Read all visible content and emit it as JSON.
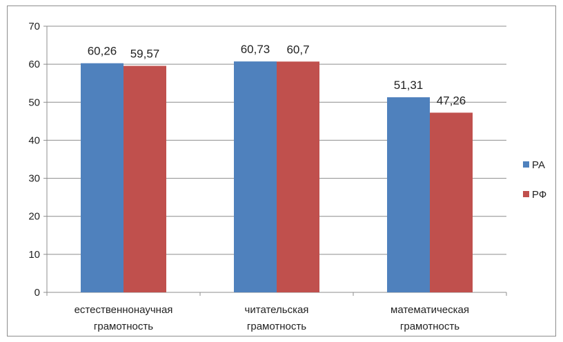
{
  "chart_data": {
    "type": "bar",
    "categories": [
      [
        "естественнонаучная",
        "грамотность"
      ],
      [
        "читательская",
        "грамотность"
      ],
      [
        "математическая",
        "грамотность"
      ]
    ],
    "series": [
      {
        "name": "РА",
        "color": "#4F81BD",
        "values": [
          60.26,
          60.73,
          51.31
        ],
        "labels": [
          "60,26",
          "60,73",
          "51,31"
        ]
      },
      {
        "name": "РФ",
        "color": "#C0504D",
        "values": [
          59.57,
          60.7,
          47.26
        ],
        "labels": [
          "59,57",
          "60,7",
          "47,26"
        ]
      }
    ],
    "ylim": [
      0,
      70
    ],
    "yticks": [
      0,
      10,
      20,
      30,
      40,
      50,
      60,
      70
    ],
    "grid": true,
    "legend": "right",
    "title": "",
    "xlabel": "",
    "ylabel": ""
  }
}
